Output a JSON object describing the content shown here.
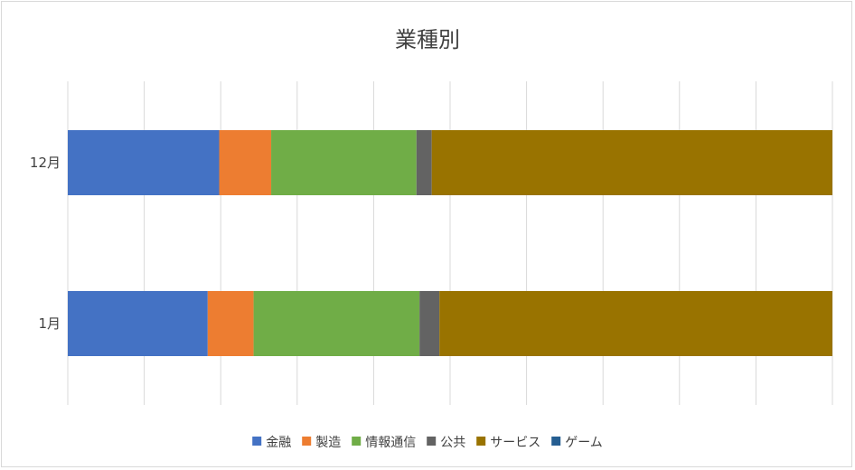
{
  "chart_data": {
    "type": "bar",
    "orientation": "horizontal",
    "stacked": "percent",
    "title": "業種別",
    "categories": [
      "12月",
      "1月"
    ],
    "series": [
      {
        "name": "金融",
        "color": "#4472C4",
        "values": [
          19.8,
          18.3
        ]
      },
      {
        "name": "製造",
        "color": "#ED7D31",
        "values": [
          6.8,
          6.0
        ]
      },
      {
        "name": "情報通信",
        "color": "#70AD47",
        "values": [
          19.0,
          21.7
        ]
      },
      {
        "name": "公共",
        "color": "#636363",
        "values": [
          2.0,
          2.6
        ]
      },
      {
        "name": "サービス",
        "color": "#997300",
        "values": [
          52.4,
          51.4
        ]
      },
      {
        "name": "ゲーム",
        "color": "#255E91",
        "values": [
          0,
          0
        ]
      }
    ],
    "xlim": [
      0,
      100
    ],
    "x_gridlines": 10,
    "grid": true,
    "legend_position": "bottom"
  }
}
